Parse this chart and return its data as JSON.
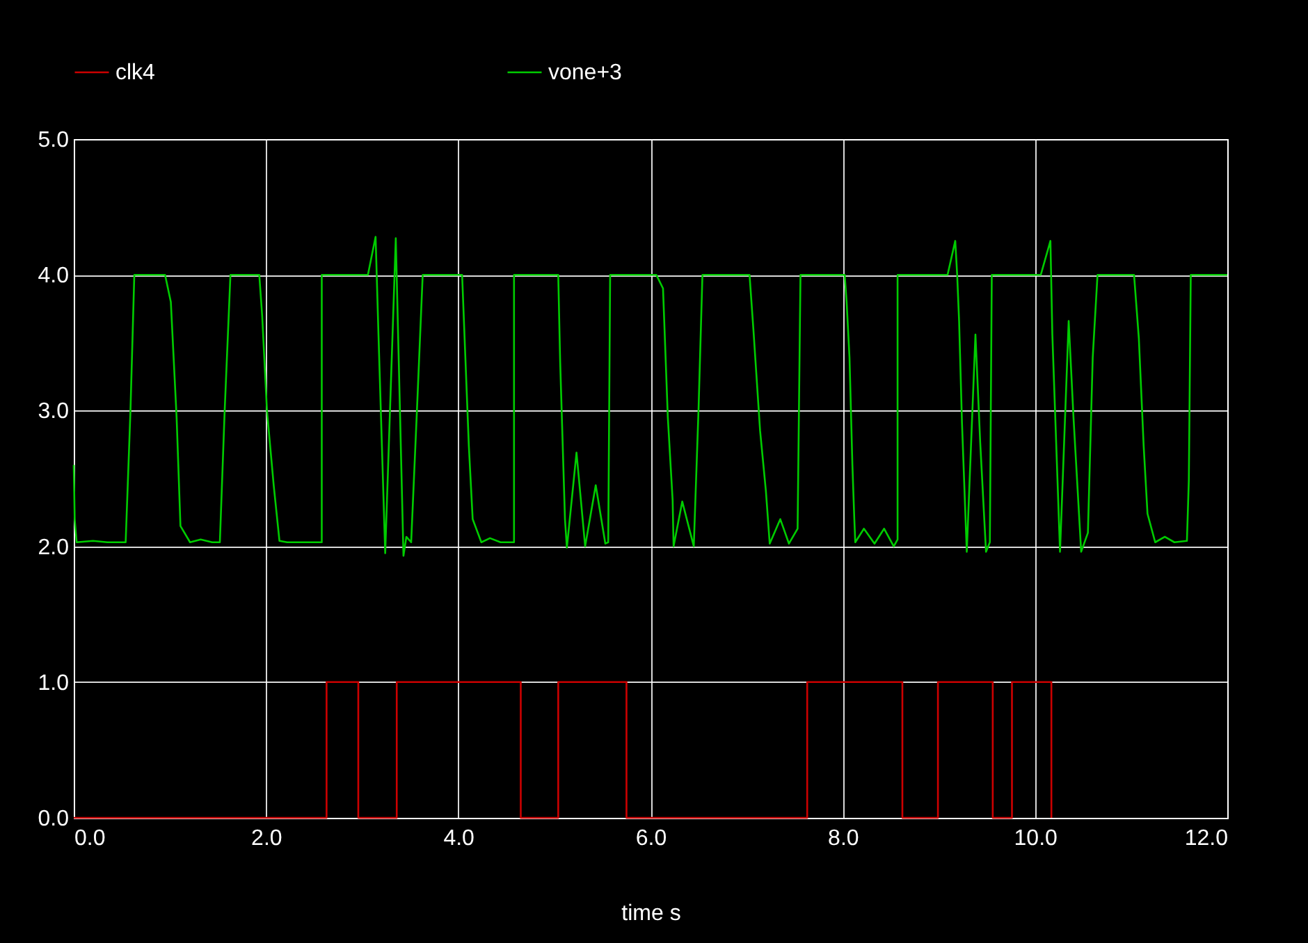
{
  "chart_data": {
    "type": "line",
    "xlabel": "time s",
    "xlim": [
      0,
      12
    ],
    "ylim": [
      0,
      5
    ],
    "xticks": [
      {
        "value": 0,
        "label": "0.0"
      },
      {
        "value": 2,
        "label": "2.0"
      },
      {
        "value": 4,
        "label": "4.0"
      },
      {
        "value": 6,
        "label": "6.0"
      },
      {
        "value": 8,
        "label": "8.0"
      },
      {
        "value": 10,
        "label": "10.0"
      },
      {
        "value": 12,
        "label": "12.0"
      }
    ],
    "yticks": [
      {
        "value": 0,
        "label": "0.0"
      },
      {
        "value": 1,
        "label": "1.0"
      },
      {
        "value": 2,
        "label": "2.0"
      },
      {
        "value": 3,
        "label": "3.0"
      },
      {
        "value": 4,
        "label": "4.0"
      },
      {
        "value": 5,
        "label": "5.0"
      }
    ],
    "grid": true,
    "legend": "top",
    "line_style": "solid",
    "marker": "none",
    "series": [
      {
        "name": "clk4",
        "color": "#cc0000",
        "x": [
          0,
          2.63,
          2.63,
          2.96,
          2.96,
          3.36,
          3.36,
          4.65,
          4.65,
          5.04,
          5.04,
          5.75,
          5.75,
          7.63,
          7.63,
          8.62,
          8.62,
          8.99,
          8.99,
          9.56,
          9.56,
          9.76,
          9.76,
          10.17,
          10.17
        ],
        "values": [
          0,
          0,
          1,
          1,
          0,
          0,
          1,
          1,
          0,
          0,
          1,
          1,
          0,
          0,
          1,
          1,
          0,
          0,
          1,
          1,
          0,
          0,
          1,
          1,
          0
        ]
      },
      {
        "name": "vone+3",
        "color": "#00cc00",
        "x": [
          0,
          0.01,
          0.03,
          0.2,
          0.35,
          0.54,
          0.59,
          0.63,
          0.95,
          1.01,
          1.07,
          1.11,
          1.21,
          1.32,
          1.44,
          1.52,
          1.57,
          1.63,
          1.93,
          1.96,
          2.01,
          2.08,
          2.14,
          2.22,
          2.32,
          2.44,
          2.58,
          2.58,
          3.06,
          3.14,
          3.17,
          3.24,
          3.35,
          3.43,
          3.46,
          3.51,
          3.57,
          3.63,
          4.04,
          4.07,
          4.11,
          4.15,
          4.24,
          4.33,
          4.44,
          4.58,
          4.58,
          5.04,
          5.06,
          5.11,
          5.13,
          5.23,
          5.32,
          5.43,
          5.53,
          5.56,
          5.58,
          6.06,
          6.13,
          6.18,
          6.23,
          6.24,
          6.33,
          6.45,
          6.5,
          6.54,
          7.03,
          7.07,
          7.14,
          7.2,
          7.24,
          7.35,
          7.44,
          7.53,
          7.56,
          8.02,
          8.04,
          8.07,
          8.1,
          8.12,
          8.13,
          8.22,
          8.33,
          8.43,
          8.53,
          8.57,
          8.57,
          9.09,
          9.17,
          9.19,
          9.21,
          9.24,
          9.29,
          9.38,
          9.43,
          9.49,
          9.53,
          9.55,
          10.06,
          10.16,
          10.18,
          10.26,
          10.35,
          10.4,
          10.48,
          10.55,
          10.6,
          10.65,
          11.03,
          11.08,
          11.13,
          11.17,
          11.25,
          11.35,
          11.45,
          11.58,
          11.6,
          11.62,
          12
        ],
        "values": [
          2.6,
          2.2,
          2.03,
          2.04,
          2.03,
          2.03,
          3.0,
          4.0,
          4.0,
          3.8,
          2.95,
          2.15,
          2.03,
          2.05,
          2.03,
          2.03,
          3.0,
          4.0,
          4.0,
          3.7,
          3.0,
          2.45,
          2.04,
          2.03,
          2.03,
          2.03,
          2.03,
          4.0,
          4.0,
          4.28,
          3.56,
          1.95,
          4.27,
          1.93,
          2.07,
          2.03,
          3.0,
          4.0,
          4.0,
          3.46,
          2.74,
          2.2,
          2.03,
          2.06,
          2.03,
          2.03,
          4.0,
          4.0,
          3.36,
          2.2,
          1.99,
          2.69,
          2.0,
          2.45,
          2.02,
          2.03,
          4.0,
          4.0,
          3.9,
          2.95,
          2.34,
          2.0,
          2.33,
          2.0,
          3.02,
          4.0,
          4.0,
          3.6,
          2.85,
          2.41,
          2.02,
          2.2,
          2.02,
          2.13,
          4.0,
          4.0,
          3.8,
          3.39,
          2.6,
          2.2,
          2.03,
          2.13,
          2.02,
          2.13,
          2.0,
          2.05,
          4.0,
          4.0,
          4.25,
          4.0,
          3.66,
          2.91,
          1.96,
          3.56,
          2.76,
          1.96,
          2.03,
          4.0,
          4.0,
          4.25,
          3.56,
          1.96,
          3.66,
          2.95,
          1.96,
          2.1,
          3.39,
          4.0,
          4.0,
          3.53,
          2.74,
          2.24,
          2.03,
          2.07,
          2.03,
          2.04,
          2.49,
          4.0,
          4.0
        ]
      }
    ]
  }
}
